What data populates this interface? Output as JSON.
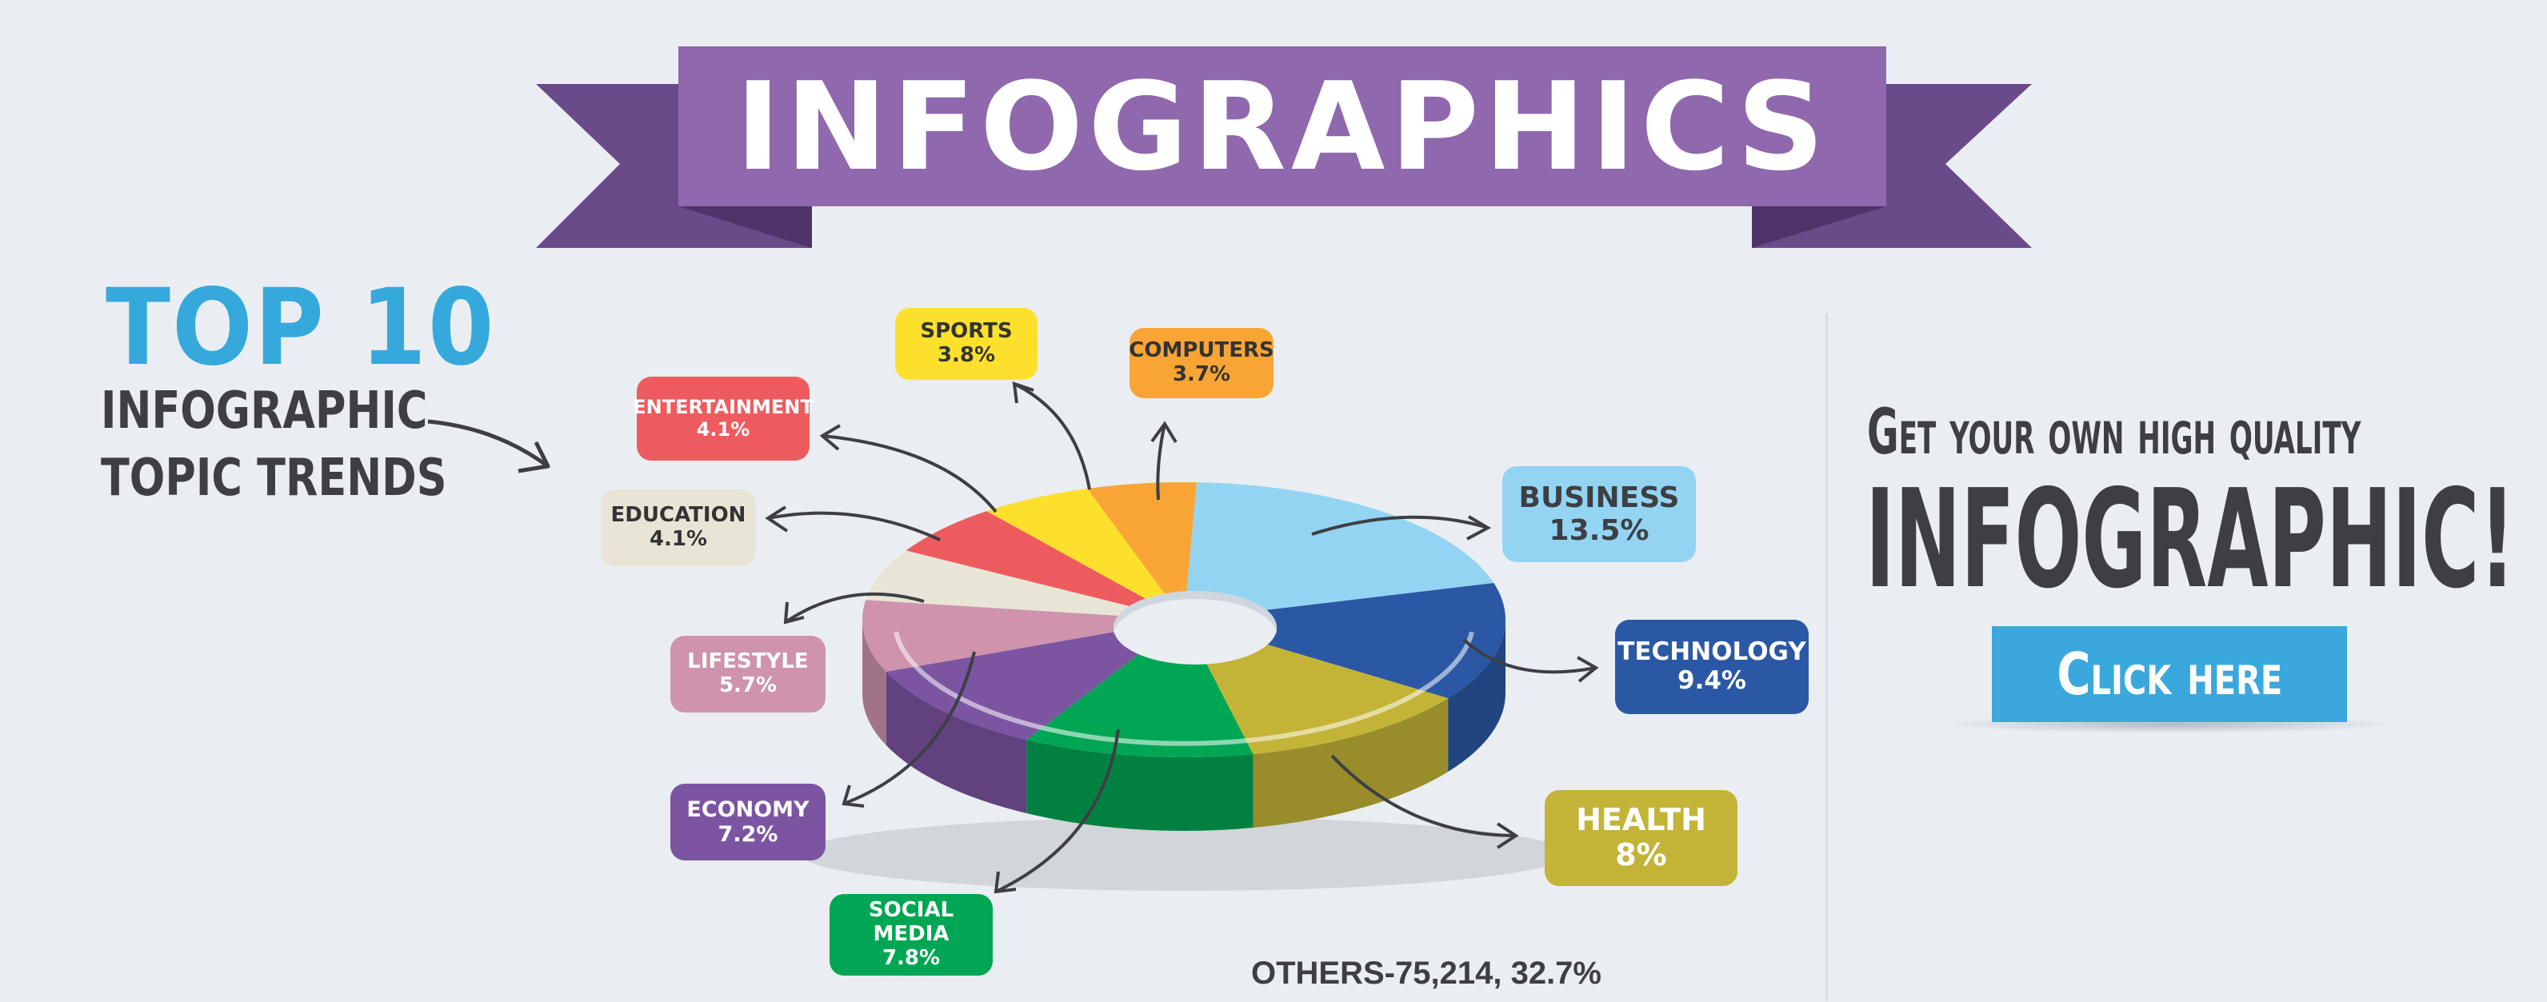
{
  "banner": {
    "title": "INFOGRAPHICS"
  },
  "headline": {
    "top": "TOP 10",
    "line1": "INFOGRAPHIC",
    "line2": "TOPIC TRENDS"
  },
  "cta": {
    "line1": "Get your own high quality",
    "line2": "INFOGRAPHIC!",
    "button_label": "Click here"
  },
  "others_label": "OTHERS-75,214, 32.7%",
  "colors": {
    "background": "#eaeef2",
    "banner": "#8f68ad",
    "banner_dark": "#6a4b8a",
    "accent_blue": "#3aa8dd",
    "text_dark": "#3d3f44"
  },
  "chart_data": {
    "type": "pie",
    "style": "3d-donut",
    "slices": [
      {
        "label": "BUSINESS",
        "value": 13.5,
        "display": "13.5%",
        "color": "#93d4f3"
      },
      {
        "label": "TECHNOLOGY",
        "value": 9.4,
        "display": "9.4%",
        "color": "#2a58a4"
      },
      {
        "label": "HEALTH",
        "value": 8,
        "display": "8%",
        "color": "#c3b437"
      },
      {
        "label": "SOCIAL MEDIA",
        "value": 7.8,
        "display": "7.8%",
        "color": "#00a653"
      },
      {
        "label": "ECONOMY",
        "value": 7.2,
        "display": "7.2%",
        "color": "#7c55a2"
      },
      {
        "label": "LIFESTYLE",
        "value": 5.7,
        "display": "5.7%",
        "color": "#cf93ad"
      },
      {
        "label": "EDUCATION",
        "value": 4.1,
        "display": "4.1%",
        "color": "#e9e5d6"
      },
      {
        "label": "ENTERTAINMENT",
        "value": 4.1,
        "display": "4.1%",
        "color": "#ee5b5e"
      },
      {
        "label": "SPORTS",
        "value": 3.8,
        "display": "3.8%",
        "color": "#fde02b"
      },
      {
        "label": "COMPUTERS",
        "value": 3.7,
        "display": "3.7%",
        "color": "#f9a535"
      }
    ],
    "others": {
      "label": "OTHERS",
      "count": 75214,
      "value": 32.7
    }
  }
}
